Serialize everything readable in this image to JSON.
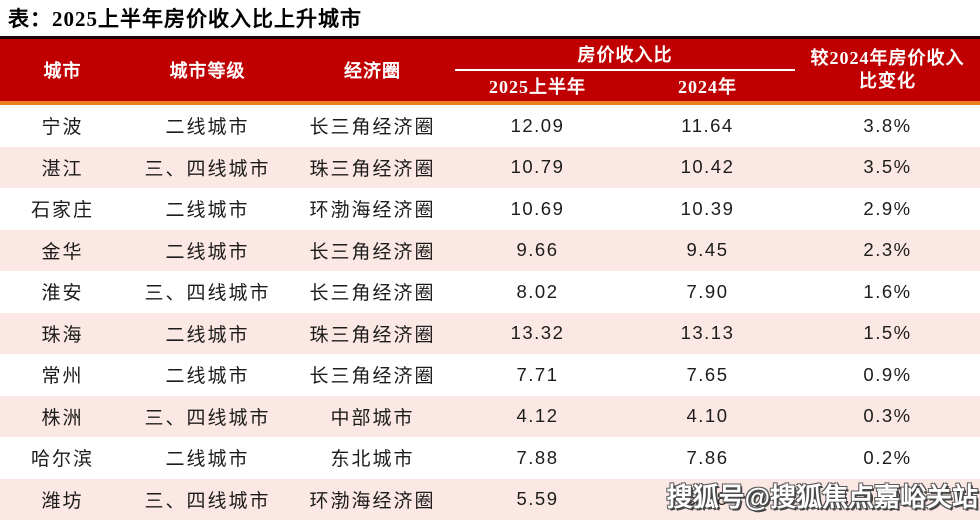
{
  "title": "表：2025上半年房价收入比上升城市",
  "colors": {
    "header_bg": "#c00000",
    "header_top_line": "#1c0505",
    "accent_line_orange": "#e8821c",
    "row_alt_bg": "#fbe8e4",
    "header_text": "#ffffff",
    "body_text": "#1c1c1c"
  },
  "table": {
    "columns": {
      "city": "城市",
      "tier": "城市等级",
      "circle": "经济圈",
      "group": "房价收入比",
      "sub_2025": "2025上半年",
      "sub_2024": "2024年",
      "change": "较2024年房价收入比变化"
    },
    "rows": [
      {
        "city": "宁波",
        "tier": "二线城市",
        "circle": "长三角经济圈",
        "v2025h1": "12.09",
        "v2024": "11.64",
        "change": "3.8%"
      },
      {
        "city": "湛江",
        "tier": "三、四线城市",
        "circle": "珠三角经济圈",
        "v2025h1": "10.79",
        "v2024": "10.42",
        "change": "3.5%"
      },
      {
        "city": "石家庄",
        "tier": "二线城市",
        "circle": "环渤海经济圈",
        "v2025h1": "10.69",
        "v2024": "10.39",
        "change": "2.9%"
      },
      {
        "city": "金华",
        "tier": "二线城市",
        "circle": "长三角经济圈",
        "v2025h1": "9.66",
        "v2024": "9.45",
        "change": "2.3%"
      },
      {
        "city": "淮安",
        "tier": "三、四线城市",
        "circle": "长三角经济圈",
        "v2025h1": "8.02",
        "v2024": "7.90",
        "change": "1.6%"
      },
      {
        "city": "珠海",
        "tier": "二线城市",
        "circle": "珠三角经济圈",
        "v2025h1": "13.32",
        "v2024": "13.13",
        "change": "1.5%"
      },
      {
        "city": "常州",
        "tier": "二线城市",
        "circle": "长三角经济圈",
        "v2025h1": "7.71",
        "v2024": "7.65",
        "change": "0.9%"
      },
      {
        "city": "株洲",
        "tier": "三、四线城市",
        "circle": "中部城市",
        "v2025h1": "4.12",
        "v2024": "4.10",
        "change": "0.3%"
      },
      {
        "city": "哈尔滨",
        "tier": "二线城市",
        "circle": "东北城市",
        "v2025h1": "7.88",
        "v2024": "7.86",
        "change": "0.2%"
      },
      {
        "city": "潍坊",
        "tier": "三、四线城市",
        "circle": "环渤海经济圈",
        "v2025h1": "5.59",
        "v2024": "5.58",
        "change": "0.2%"
      }
    ]
  },
  "watermark": "搜狐号@搜狐焦点嘉峪关站"
}
